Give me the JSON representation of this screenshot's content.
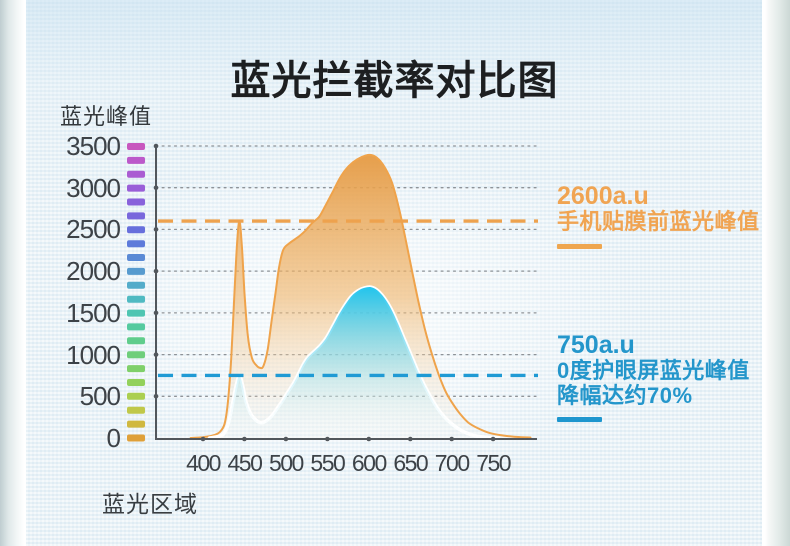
{
  "page": {
    "title": "蓝光拦截率对比图"
  },
  "chart_data": {
    "type": "area",
    "title": "蓝光拦截率对比图",
    "ylabel": "蓝光峰值",
    "xlabel": "蓝光区域",
    "value_unit": "a.u",
    "yticks": [
      "3500",
      "3000",
      "2500",
      "2000",
      "1500",
      "1000",
      "500",
      "0"
    ],
    "xticks": [
      "400",
      "450",
      "500",
      "550",
      "600",
      "650",
      "700",
      "750"
    ],
    "ylim": [
      0,
      3500
    ],
    "xlim": [
      385,
      800
    ],
    "grid": "dotted-horizontal",
    "legend_position": "none",
    "series": [
      {
        "name": "手机贴膜前蓝光峰值",
        "blue_light_peak": 2600,
        "line_color": "#EFA34B",
        "fill_top_color": "#E69C46",
        "points": [
          [
            385,
            0
          ],
          [
            400,
            10
          ],
          [
            412,
            30
          ],
          [
            420,
            70
          ],
          [
            426,
            170
          ],
          [
            430,
            430
          ],
          [
            434,
            950
          ],
          [
            438,
            1750
          ],
          [
            441,
            2320
          ],
          [
            444,
            2600
          ],
          [
            447,
            2280
          ],
          [
            450,
            1750
          ],
          [
            454,
            1230
          ],
          [
            459,
            960
          ],
          [
            464,
            875
          ],
          [
            469,
            840
          ],
          [
            473,
            865
          ],
          [
            478,
            1060
          ],
          [
            483,
            1420
          ],
          [
            488,
            1780
          ],
          [
            492,
            2060
          ],
          [
            497,
            2260
          ],
          [
            505,
            2340
          ],
          [
            515,
            2410
          ],
          [
            524,
            2490
          ],
          [
            532,
            2580
          ],
          [
            540,
            2650
          ],
          [
            548,
            2790
          ],
          [
            557,
            2960
          ],
          [
            566,
            3130
          ],
          [
            576,
            3260
          ],
          [
            586,
            3340
          ],
          [
            596,
            3385
          ],
          [
            604,
            3390
          ],
          [
            612,
            3340
          ],
          [
            620,
            3230
          ],
          [
            628,
            3060
          ],
          [
            636,
            2770
          ],
          [
            644,
            2400
          ],
          [
            652,
            2010
          ],
          [
            660,
            1630
          ],
          [
            668,
            1290
          ],
          [
            676,
            1010
          ],
          [
            684,
            770
          ],
          [
            692,
            570
          ],
          [
            700,
            430
          ],
          [
            710,
            290
          ],
          [
            720,
            185
          ],
          [
            732,
            115
          ],
          [
            745,
            62
          ],
          [
            760,
            32
          ],
          [
            775,
            16
          ],
          [
            795,
            6
          ]
        ]
      },
      {
        "name": "0度护眼屏蓝光峰值",
        "blue_light_peak": 750,
        "line_color": "#FFFFFF",
        "fill_top_color": "#1CC4EF",
        "points": [
          [
            408,
            0
          ],
          [
            420,
            22
          ],
          [
            426,
            65
          ],
          [
            431,
            190
          ],
          [
            436,
            430
          ],
          [
            440,
            630
          ],
          [
            444,
            750
          ],
          [
            448,
            620
          ],
          [
            452,
            430
          ],
          [
            457,
            300
          ],
          [
            462,
            232
          ],
          [
            467,
            192
          ],
          [
            471,
            182
          ],
          [
            476,
            205
          ],
          [
            482,
            255
          ],
          [
            488,
            335
          ],
          [
            495,
            435
          ],
          [
            502,
            545
          ],
          [
            509,
            655
          ],
          [
            515,
            765
          ],
          [
            520,
            865
          ],
          [
            526,
            960
          ],
          [
            531,
            1010
          ],
          [
            537,
            1065
          ],
          [
            543,
            1125
          ],
          [
            549,
            1205
          ],
          [
            556,
            1330
          ],
          [
            563,
            1460
          ],
          [
            571,
            1590
          ],
          [
            579,
            1700
          ],
          [
            587,
            1765
          ],
          [
            595,
            1800
          ],
          [
            603,
            1808
          ],
          [
            611,
            1765
          ],
          [
            619,
            1675
          ],
          [
            627,
            1545
          ],
          [
            635,
            1375
          ],
          [
            643,
            1185
          ],
          [
            651,
            995
          ],
          [
            659,
            805
          ],
          [
            667,
            635
          ],
          [
            675,
            485
          ],
          [
            683,
            355
          ],
          [
            691,
            255
          ],
          [
            699,
            178
          ],
          [
            709,
            105
          ],
          [
            719,
            55
          ],
          [
            731,
            22
          ],
          [
            743,
            7
          ],
          [
            756,
            0
          ]
        ]
      }
    ],
    "reference_lines": [
      {
        "value": 2600,
        "color": "#EEA24E",
        "style": "dashed"
      },
      {
        "value": 750,
        "color": "#1F9AD4",
        "style": "dashed"
      }
    ],
    "spectrum_bar_colors": [
      "#C857BE",
      "#BC59CA",
      "#AA5CD2",
      "#9A5ED8",
      "#8962DB",
      "#7867DC",
      "#676FDC",
      "#5E7BDA",
      "#5A8AD5",
      "#579BCF",
      "#54ACCA",
      "#50BAC2",
      "#4EC5B2",
      "#55CA9F",
      "#60CD8C",
      "#6ECE7B",
      "#7FD06A",
      "#93D15B",
      "#ABCF50",
      "#C0C849",
      "#D0B83F",
      "#DFA039"
    ]
  },
  "annotations": {
    "before": {
      "value_line": "2600a.u",
      "desc_line": "手机贴膜前蓝光峰值",
      "color": "#F0A452",
      "bar_color": "#EFA64F"
    },
    "after": {
      "value_line": "750a.u",
      "desc_line": "0度护眼屏蓝光峰值",
      "extra_line": "降幅达约70%",
      "color": "#2496CB",
      "bar_color": "#1E96CE"
    }
  }
}
